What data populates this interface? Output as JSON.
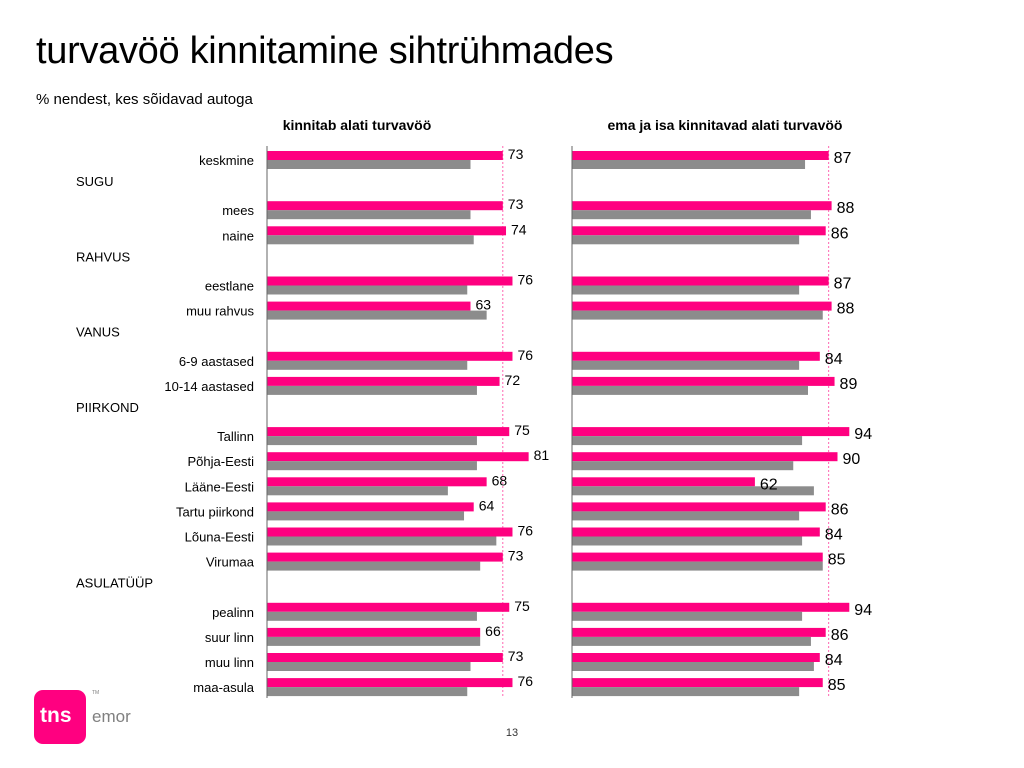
{
  "page": {
    "title": "turvavöö kinnitamine sihtrühmades",
    "subtitle": "% nendest, kes sõidavad autoga",
    "page_number": "13",
    "logo": "tns emor"
  },
  "colors": {
    "primary": "#FF0080",
    "secondary": "#8C8C8C",
    "reference_line": "#FF66B2",
    "axis": "#666666"
  },
  "chart_data": [
    {
      "type": "bar",
      "orientation": "horizontal",
      "title": "kinnitab alati turvavöö",
      "xlim": [
        0,
        100
      ],
      "reference_line": 73,
      "rows": [
        {
          "kind": "item",
          "label": "keskmine",
          "value": 73,
          "secondary": 63
        },
        {
          "kind": "group",
          "label": "SUGU"
        },
        {
          "kind": "item",
          "label": "mees",
          "value": 73,
          "secondary": 63
        },
        {
          "kind": "item",
          "label": "naine",
          "value": 74,
          "secondary": 64
        },
        {
          "kind": "group",
          "label": "RAHVUS"
        },
        {
          "kind": "item",
          "label": "eestlane",
          "value": 76,
          "secondary": 62
        },
        {
          "kind": "item",
          "label": "muu rahvus",
          "value": 63,
          "secondary": 68
        },
        {
          "kind": "group",
          "label": "VANUS"
        },
        {
          "kind": "item",
          "label": "6-9 aastased",
          "value": 76,
          "secondary": 62
        },
        {
          "kind": "item",
          "label": "10-14 aastased",
          "value": 72,
          "secondary": 65
        },
        {
          "kind": "group",
          "label": "PIIRKOND"
        },
        {
          "kind": "item",
          "label": "Tallinn",
          "value": 75,
          "secondary": 65
        },
        {
          "kind": "item",
          "label": "Põhja-Eesti",
          "value": 81,
          "secondary": 65
        },
        {
          "kind": "item",
          "label": "Lääne-Eesti",
          "value": 68,
          "secondary": 56
        },
        {
          "kind": "item",
          "label": "Tartu piirkond",
          "value": 64,
          "secondary": 61
        },
        {
          "kind": "item",
          "label": "Lõuna-Eesti",
          "value": 76,
          "secondary": 71
        },
        {
          "kind": "item",
          "label": "Virumaa",
          "value": 73,
          "secondary": 66
        },
        {
          "kind": "group",
          "label": "ASULATÜÜP"
        },
        {
          "kind": "item",
          "label": "pealinn",
          "value": 75,
          "secondary": 65
        },
        {
          "kind": "item",
          "label": "suur linn",
          "value": 66,
          "secondary": 66
        },
        {
          "kind": "item",
          "label": "muu linn",
          "value": 73,
          "secondary": 63
        },
        {
          "kind": "item",
          "label": "maa-asula",
          "value": 76,
          "secondary": 62
        }
      ]
    },
    {
      "type": "bar",
      "orientation": "horizontal",
      "title": "ema ja isa kinnitavad alati turvavöö",
      "xlim": [
        0,
        100
      ],
      "reference_line": 87,
      "rows": [
        {
          "kind": "item",
          "label": "keskmine",
          "value": 87,
          "secondary": 79
        },
        {
          "kind": "group",
          "label": "SUGU"
        },
        {
          "kind": "item",
          "label": "mees",
          "value": 88,
          "secondary": 81
        },
        {
          "kind": "item",
          "label": "naine",
          "value": 86,
          "secondary": 77
        },
        {
          "kind": "group",
          "label": "RAHVUS"
        },
        {
          "kind": "item",
          "label": "eestlane",
          "value": 87,
          "secondary": 77
        },
        {
          "kind": "item",
          "label": "muu rahvus",
          "value": 88,
          "secondary": 85
        },
        {
          "kind": "group",
          "label": "VANUS"
        },
        {
          "kind": "item",
          "label": "6-9 aastased",
          "value": 84,
          "secondary": 77
        },
        {
          "kind": "item",
          "label": "10-14 aastased",
          "value": 89,
          "secondary": 80
        },
        {
          "kind": "group",
          "label": "PIIRKOND"
        },
        {
          "kind": "item",
          "label": "Tallinn",
          "value": 94,
          "secondary": 78
        },
        {
          "kind": "item",
          "label": "Põhja-Eesti",
          "value": 90,
          "secondary": 75
        },
        {
          "kind": "item",
          "label": "Lääne-Eesti",
          "value": 62,
          "secondary": 82
        },
        {
          "kind": "item",
          "label": "Tartu piirkond",
          "value": 86,
          "secondary": 77
        },
        {
          "kind": "item",
          "label": "Lõuna-Eesti",
          "value": 84,
          "secondary": 78
        },
        {
          "kind": "item",
          "label": "Virumaa",
          "value": 85,
          "secondary": 85
        },
        {
          "kind": "group",
          "label": "ASULATÜÜP"
        },
        {
          "kind": "item",
          "label": "pealinn",
          "value": 94,
          "secondary": 78
        },
        {
          "kind": "item",
          "label": "suur linn",
          "value": 86,
          "secondary": 81
        },
        {
          "kind": "item",
          "label": "muu linn",
          "value": 84,
          "secondary": 82
        },
        {
          "kind": "item",
          "label": "maa-asula",
          "value": 85,
          "secondary": 77
        }
      ]
    }
  ]
}
